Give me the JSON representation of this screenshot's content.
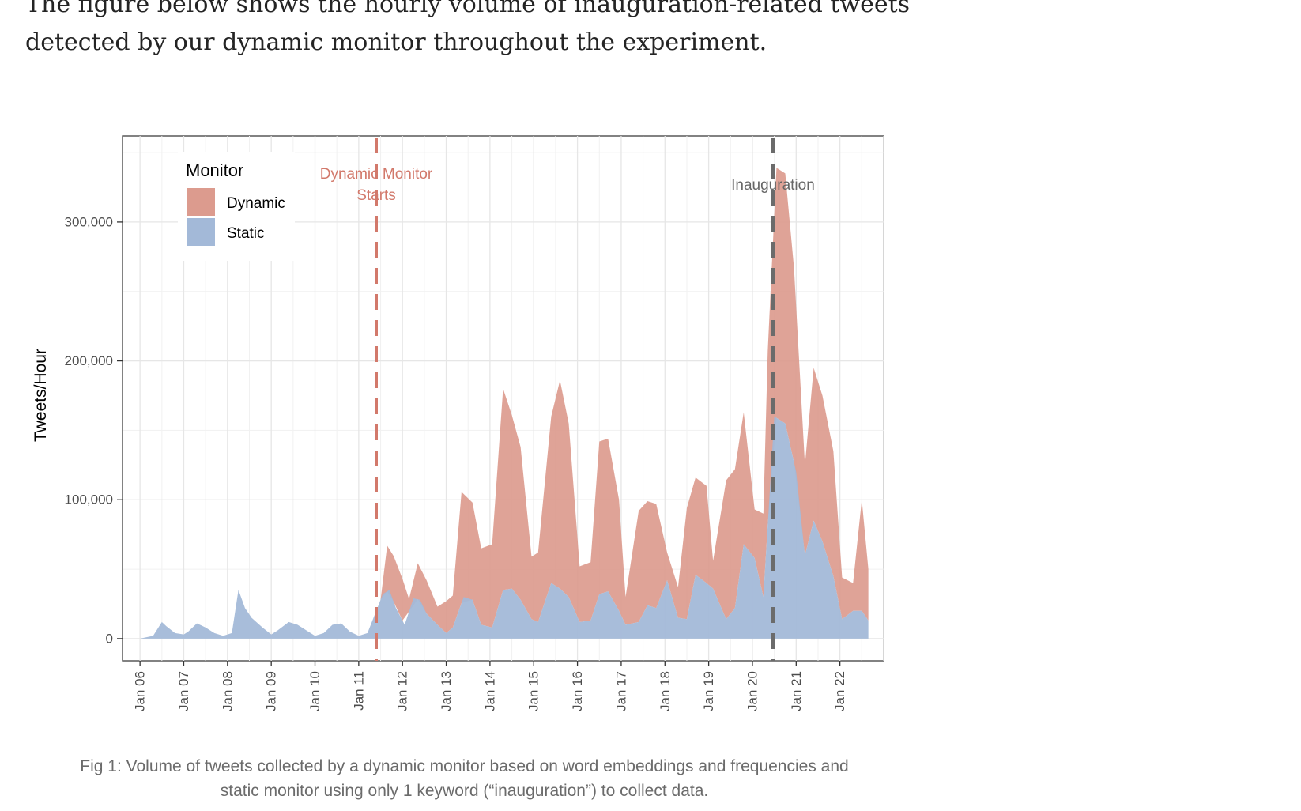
{
  "article": {
    "intro_line1": "The figure below shows the hourly volume of inauguration-related tweets",
    "intro_line2": "detected by our dynamic monitor throughout the experiment.",
    "caption_line1": "Fig 1: Volume of tweets collected by a dynamic monitor based on word embeddings and frequencies and",
    "caption_line2": "static monitor using only 1 keyword (“inauguration”) to collect data."
  },
  "chart_data": {
    "type": "area",
    "stacked": true,
    "title": "",
    "xlabel": "",
    "ylabel": "Tweets/Hour",
    "xlim": [
      5.6,
      23.0
    ],
    "ylim": [
      -16000,
      362000
    ],
    "x_ticks": [
      6,
      7,
      8,
      9,
      10,
      11,
      12,
      13,
      14,
      15,
      16,
      17,
      18,
      19,
      20,
      21,
      22
    ],
    "x_tick_labels": [
      "Jan 06",
      "Jan 07",
      "Jan 08",
      "Jan 09",
      "Jan 10",
      "Jan 11",
      "Jan 12",
      "Jan 13",
      "Jan 14",
      "Jan 15",
      "Jan 16",
      "Jan 17",
      "Jan 18",
      "Jan 19",
      "Jan 20",
      "Jan 21",
      "Jan 22"
    ],
    "y_ticks": [
      0,
      100000,
      200000,
      300000
    ],
    "y_tick_labels": [
      "0",
      "100,000",
      "200,000",
      "300,000"
    ],
    "grid": true,
    "legend": {
      "title": "Monitor",
      "position": "top-left"
    },
    "series": [
      {
        "name": "Static",
        "color": "#a3b9d8",
        "x": [
          6.0,
          6.3,
          6.5,
          6.6,
          6.8,
          7.0,
          7.1,
          7.3,
          7.5,
          7.7,
          7.9,
          8.1,
          8.25,
          8.4,
          8.55,
          8.8,
          9.0,
          9.15,
          9.4,
          9.6,
          9.8,
          10.0,
          10.2,
          10.4,
          10.6,
          10.8,
          11.0,
          11.2,
          11.4,
          11.55,
          11.7,
          11.85,
          12.05,
          12.25,
          12.4,
          12.55,
          12.8,
          13.0,
          13.15,
          13.4,
          13.6,
          13.8,
          14.05,
          14.3,
          14.5,
          14.7,
          14.95,
          15.1,
          15.4,
          15.6,
          15.8,
          16.05,
          16.3,
          16.5,
          16.7,
          16.95,
          17.1,
          17.4,
          17.6,
          17.8,
          18.05,
          18.3,
          18.5,
          18.7,
          18.95,
          19.1,
          19.4,
          19.6,
          19.8,
          20.05,
          20.25,
          20.5,
          20.75,
          21.0,
          21.2,
          21.4,
          21.6,
          21.85,
          22.05,
          22.3,
          22.5,
          22.65
        ],
        "values": [
          0,
          2000,
          12000,
          9000,
          4000,
          3000,
          5000,
          11000,
          8000,
          4000,
          2000,
          4000,
          35000,
          22000,
          15000,
          8000,
          3000,
          6000,
          12000,
          10000,
          6000,
          2000,
          4000,
          10000,
          11000,
          5000,
          2000,
          4000,
          20000,
          32000,
          35000,
          22000,
          10000,
          29000,
          28000,
          18000,
          10000,
          4000,
          8000,
          30000,
          28000,
          10000,
          8000,
          35000,
          36000,
          28000,
          14000,
          12000,
          40000,
          36000,
          30000,
          12000,
          13000,
          32000,
          34000,
          20000,
          10000,
          12000,
          24000,
          22000,
          42000,
          15000,
          14000,
          46000,
          40000,
          36000,
          14000,
          22000,
          68000,
          58000,
          30000,
          160000,
          155000,
          120000,
          60000,
          85000,
          70000,
          45000,
          14000,
          20000,
          20000,
          13000
        ]
      },
      {
        "name": "Dynamic",
        "color": "#dc9b8e",
        "x": [
          11.5,
          11.65,
          11.8,
          12.0,
          12.15,
          12.35,
          12.55,
          12.8,
          13.0,
          13.15,
          13.35,
          13.6,
          13.8,
          14.05,
          14.3,
          14.5,
          14.7,
          14.95,
          15.1,
          15.4,
          15.6,
          15.8,
          16.05,
          16.3,
          16.5,
          16.7,
          16.95,
          17.1,
          17.4,
          17.6,
          17.8,
          18.05,
          18.3,
          18.5,
          18.7,
          18.95,
          19.1,
          19.4,
          19.6,
          19.8,
          20.05,
          20.25,
          20.35,
          20.55,
          20.75,
          20.95,
          21.2,
          21.4,
          21.6,
          21.85,
          22.05,
          22.3,
          22.5,
          22.65
        ],
        "values": [
          0,
          33000,
          33000,
          30000,
          9000,
          26000,
          24000,
          13000,
          23000,
          23000,
          80000,
          70000,
          55000,
          60000,
          145000,
          125000,
          110000,
          45000,
          50000,
          120000,
          150000,
          125000,
          40000,
          42000,
          110000,
          110000,
          80000,
          20000,
          80000,
          75000,
          75000,
          20000,
          22000,
          80000,
          70000,
          70000,
          20000,
          100000,
          100000,
          95000,
          35000,
          60000,
          125000,
          180000,
          180000,
          140000,
          65000,
          110000,
          105000,
          90000,
          30000,
          20000,
          80000,
          37000
        ]
      }
    ],
    "annotations": [
      {
        "x": 11.4,
        "label_line1": "Dynamic Monitor",
        "label_line2": "Starts",
        "color": "#d2796b",
        "style": "dashed"
      },
      {
        "x": 20.47,
        "label": "Inauguration",
        "color": "#6b6b6b",
        "style": "dashed"
      }
    ]
  }
}
